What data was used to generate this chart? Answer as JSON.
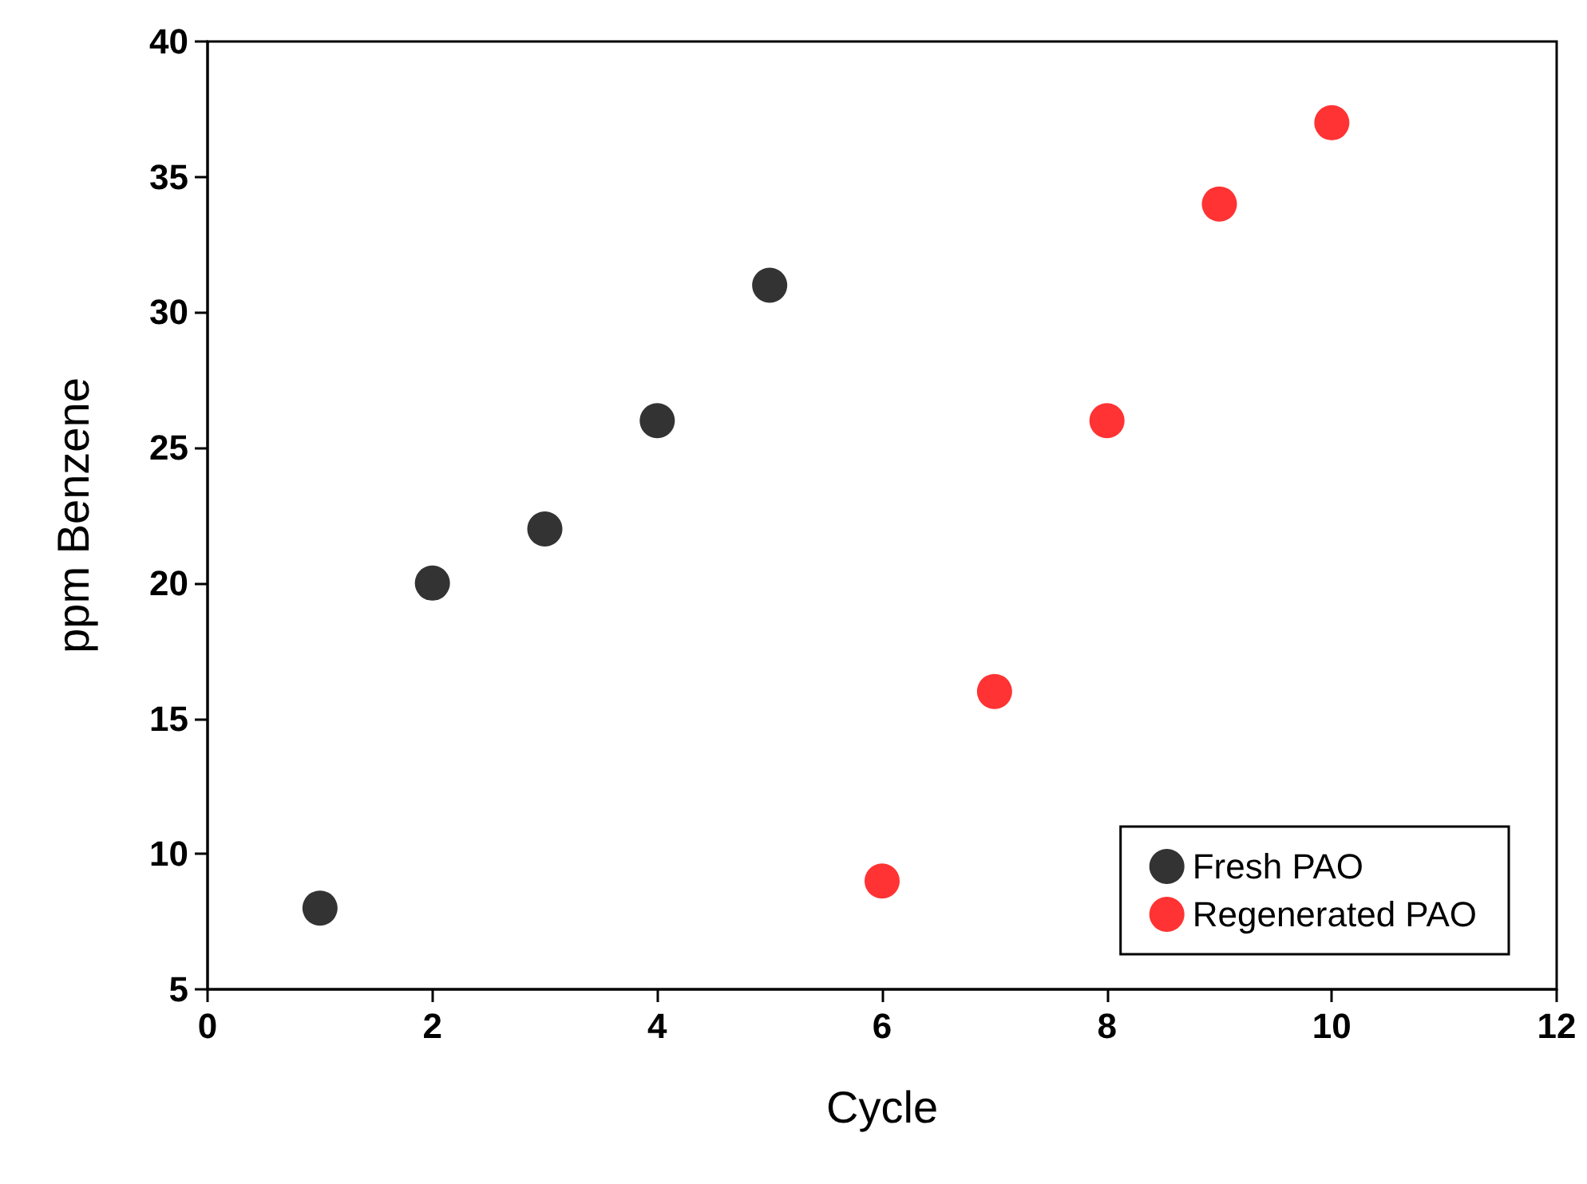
{
  "chart_data": {
    "type": "scatter",
    "xlabel": "Cycle",
    "ylabel": "ppm Benzene",
    "series": [
      {
        "name": "Fresh PAO",
        "color": "#000000",
        "x": [
          1,
          2,
          3,
          4,
          5
        ],
        "values": [
          8,
          20,
          22,
          26,
          31
        ]
      },
      {
        "name": "Regenerated PAO",
        "color": "#ff0000",
        "x": [
          6,
          7,
          8,
          9,
          10
        ],
        "values": [
          9,
          16,
          26,
          34,
          37
        ]
      }
    ],
    "xlim": [
      0,
      12
    ],
    "xticks": [
      0,
      2,
      4,
      6,
      8,
      10,
      12
    ],
    "ylim": [
      5,
      40
    ],
    "yticks": [
      5,
      10,
      15,
      20,
      25,
      30,
      35,
      40
    ],
    "grid": false,
    "legend": "bottom right",
    "marker": "circle"
  }
}
